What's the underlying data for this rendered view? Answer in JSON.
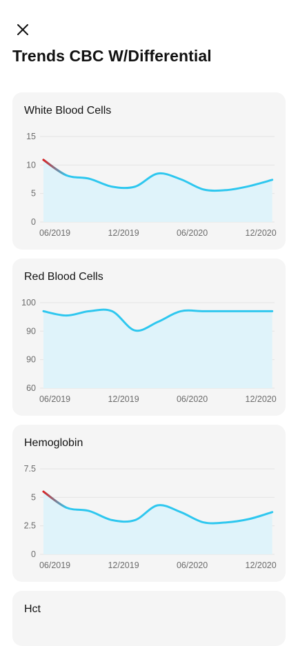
{
  "header": {
    "close_icon": "close-icon",
    "title": "Trends CBC W/Differential"
  },
  "colors": {
    "line": "#2ec7ef",
    "area": "#dff3fa",
    "highlight": "#e02020",
    "card_bg": "#f5f5f5"
  },
  "cards": [
    {
      "title": "White Blood Cells",
      "chart_data": {
        "type": "area",
        "x": [
          "2019-05",
          "2019-07",
          "2019-09",
          "2019-11",
          "2020-01",
          "2020-03",
          "2020-05",
          "2020-07",
          "2020-09",
          "2020-11",
          "2021-01"
        ],
        "x_tick_labels": [
          "06/2019",
          "12/2019",
          "06/2020",
          "12/2020"
        ],
        "y_tick_labels": [
          "0",
          "5",
          "10",
          "15"
        ],
        "ylim": [
          0,
          15
        ],
        "series": [
          {
            "values": [
              10.9,
              8.2,
              7.6,
              6.2,
              6.2,
              8.5,
              7.5,
              5.7,
              5.6,
              6.3,
              7.4
            ]
          }
        ],
        "highlight_segment": "first point descending",
        "grid": true
      }
    },
    {
      "title": "Red Blood Cells",
      "chart_data": {
        "type": "area",
        "x": [
          "2019-05",
          "2019-07",
          "2019-09",
          "2019-11",
          "2020-01",
          "2020-03",
          "2020-05",
          "2020-07",
          "2020-09",
          "2020-11",
          "2021-01"
        ],
        "x_tick_labels": [
          "06/2019",
          "12/2019",
          "06/2020",
          "12/2020"
        ],
        "y_tick_labels": [
          "60",
          "90",
          "90",
          "100"
        ],
        "ylim": [
          60,
          100
        ],
        "series": [
          {
            "values": [
              96,
              94,
              96,
              96,
              87,
              91,
              96,
              96,
              96,
              96,
              96
            ]
          }
        ],
        "grid": true
      }
    },
    {
      "title": "Hemoglobin",
      "chart_data": {
        "type": "area",
        "x": [
          "2019-05",
          "2019-07",
          "2019-09",
          "2019-11",
          "2020-01",
          "2020-03",
          "2020-05",
          "2020-07",
          "2020-09",
          "2020-11",
          "2021-01"
        ],
        "x_tick_labels": [
          "06/2019",
          "12/2019",
          "06/2020",
          "12/2020"
        ],
        "y_tick_labels": [
          "0",
          "2.5",
          "5",
          "7.5"
        ],
        "ylim": [
          0,
          7.5
        ],
        "series": [
          {
            "values": [
              5.5,
              4.1,
              3.8,
              3.0,
              3.0,
              4.3,
              3.7,
              2.8,
              2.8,
              3.1,
              3.7
            ]
          }
        ],
        "highlight_segment": "first point descending",
        "grid": true
      }
    },
    {
      "title": "Hct"
    }
  ]
}
